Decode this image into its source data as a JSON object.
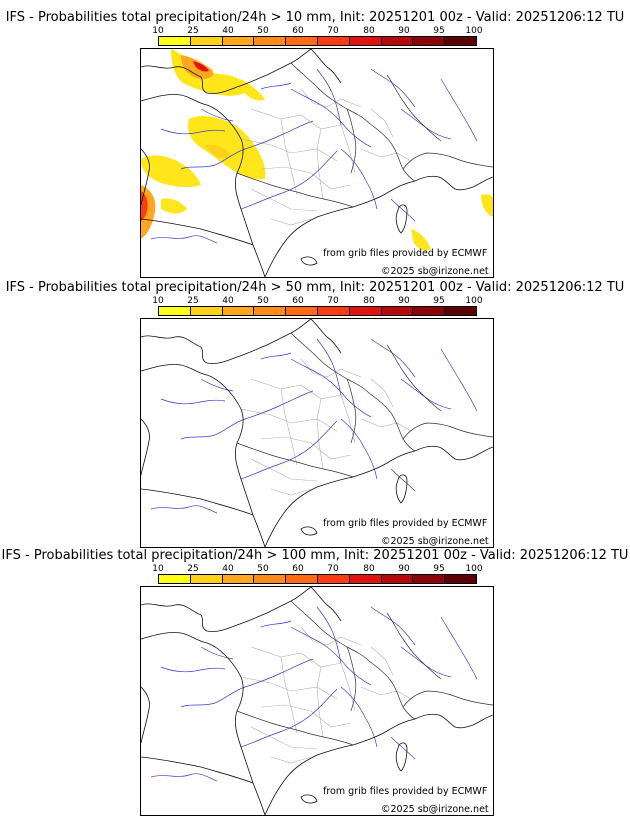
{
  "panels": [
    {
      "title": "IFS - Probabilities total precipitation/24h > 10 mm, Init: 20251201 00z - Valid: 20251206:12 TU",
      "has_precip": true
    },
    {
      "title": "IFS - Probabilities total precipitation/24h > 50 mm, Init: 20251201 00z - Valid: 20251206:12 TU",
      "has_precip": false
    },
    {
      "title": "IFS - Probabilities total precipitation/24h > 100 mm, Init: 20251201 00z - Valid: 20251206:12 TU",
      "has_precip": false
    }
  ],
  "colorbar": {
    "labels": [
      "10",
      "25",
      "40",
      "50",
      "60",
      "70",
      "80",
      "90",
      "95",
      "100"
    ],
    "colors": [
      "#ffff1a",
      "#ffd21a",
      "#ffa81f",
      "#ff8c1a",
      "#ff6a14",
      "#ff3b14",
      "#e0140f",
      "#b50a0a",
      "#8a0505",
      "#5a0202"
    ]
  },
  "credits": {
    "source": "from grib files provided by ECMWF",
    "copyright": "©2025 sb@irizone.net"
  }
}
